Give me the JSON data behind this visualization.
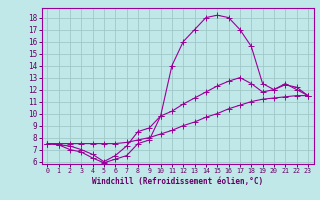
{
  "bg_color": "#c0e8e8",
  "grid_color": "#a0c8c8",
  "line_color": "#990099",
  "marker_color": "#990099",
  "xlabel": "Windchill (Refroidissement éolien,°C)",
  "xlabel_color": "#660066",
  "tick_color": "#660066",
  "xlim": [
    -0.5,
    23.5
  ],
  "ylim": [
    5.8,
    18.8
  ],
  "xticks": [
    0,
    1,
    2,
    3,
    4,
    5,
    6,
    7,
    8,
    9,
    10,
    11,
    12,
    13,
    14,
    15,
    16,
    17,
    18,
    19,
    20,
    21,
    22,
    23
  ],
  "yticks": [
    6,
    7,
    8,
    9,
    10,
    11,
    12,
    13,
    14,
    15,
    16,
    17,
    18
  ],
  "curve1_x": [
    0,
    1,
    2,
    3,
    4,
    5,
    6,
    7,
    8,
    9,
    10,
    11,
    12,
    13,
    14,
    15,
    16,
    17,
    18,
    19,
    20,
    21,
    22,
    23
  ],
  "curve1_y": [
    7.5,
    7.4,
    7.3,
    7.0,
    6.6,
    6.0,
    6.5,
    7.3,
    8.5,
    8.8,
    9.8,
    10.2,
    10.8,
    11.3,
    11.8,
    12.3,
    12.7,
    13.0,
    12.5,
    11.8,
    12.0,
    12.4,
    12.2,
    11.5
  ],
  "curve2_x": [
    0,
    1,
    2,
    3,
    4,
    5,
    6,
    7,
    8,
    9,
    10,
    11,
    12,
    13,
    14,
    15,
    16,
    17,
    18,
    19,
    20,
    21,
    22,
    23
  ],
  "curve2_y": [
    7.5,
    7.4,
    7.0,
    6.8,
    6.3,
    5.9,
    6.2,
    6.5,
    7.5,
    7.8,
    9.8,
    14.0,
    16.0,
    17.0,
    18.0,
    18.2,
    18.0,
    17.0,
    15.6,
    12.5,
    12.0,
    12.5,
    12.0,
    11.5
  ],
  "curve3_x": [
    0,
    1,
    2,
    3,
    4,
    5,
    6,
    7,
    8,
    9,
    10,
    11,
    12,
    13,
    14,
    15,
    16,
    17,
    18,
    19,
    20,
    21,
    22,
    23
  ],
  "curve3_y": [
    7.5,
    7.5,
    7.5,
    7.5,
    7.5,
    7.5,
    7.5,
    7.6,
    7.8,
    8.0,
    8.3,
    8.6,
    9.0,
    9.3,
    9.7,
    10.0,
    10.4,
    10.7,
    11.0,
    11.2,
    11.3,
    11.4,
    11.5,
    11.5
  ]
}
